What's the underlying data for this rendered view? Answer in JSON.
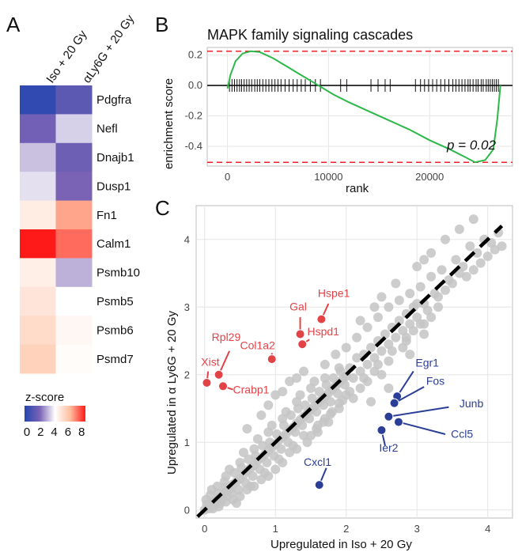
{
  "panels": {
    "a": "A",
    "b": "B",
    "c": "C"
  },
  "heatmap": {
    "columns": [
      "Iso + 20 Gy",
      "αLy6G + 20 Gy"
    ],
    "rows": [
      "Pdgfra",
      "Nefl",
      "Dnajb1",
      "Dusp1",
      "Fn1",
      "Calm1",
      "Psmb10",
      "Psmb5",
      "Psmb6",
      "Psmd7"
    ],
    "values": [
      [
        0.3,
        1.3
      ],
      [
        1.8,
        3.4
      ],
      [
        3.2,
        1.7
      ],
      [
        3.6,
        2.0
      ],
      [
        4.6,
        6.3
      ],
      [
        8.0,
        7.0
      ],
      [
        4.5,
        3.0
      ],
      [
        4.8,
        4.0
      ],
      [
        5.1,
        4.25
      ],
      [
        5.4,
        4.1
      ]
    ],
    "legend_title": "z-score",
    "legend_ticks": [
      "0",
      "2",
      "4",
      "6",
      "8"
    ],
    "legend_colors": [
      "#2346b0",
      "#7a63b5",
      "#ffffff",
      "#ffbe9f",
      "#ff1a1a"
    ]
  },
  "chart_data": [
    {
      "type": "line",
      "title": "MAPK family signaling cascades",
      "xlabel": "rank",
      "ylabel": "enrichment score",
      "xlim": [
        -2000,
        28200
      ],
      "ylim": [
        -0.53,
        0.25
      ],
      "x_ticks": [
        0,
        10000,
        20000
      ],
      "y_ticks": [
        -0.4,
        -0.2,
        0.0,
        0.2
      ],
      "y_tick_labels": [
        "-0.4",
        "-0.2",
        "0.0",
        "0.2"
      ],
      "series": [
        {
          "color": "#2db84a",
          "x": [
            0,
            300,
            800,
            1500,
            2300,
            3200,
            4500,
            6000,
            7500,
            8500,
            9500,
            10500,
            12000,
            14000,
            16000,
            18000,
            20000,
            22000,
            23500,
            24500,
            25500,
            26300,
            26700,
            27000
          ],
          "y": [
            -0.02,
            0.07,
            0.16,
            0.21,
            0.225,
            0.22,
            0.18,
            0.12,
            0.06,
            0.02,
            -0.02,
            -0.06,
            -0.11,
            -0.17,
            -0.23,
            -0.29,
            -0.36,
            -0.42,
            -0.47,
            -0.505,
            -0.49,
            -0.42,
            -0.22,
            0.0
          ]
        }
      ],
      "reference_lines": [
        0.225,
        -0.505
      ],
      "reference_color": "#e8232a",
      "rug_ranks": [
        200,
        450,
        700,
        950,
        1200,
        1400,
        1650,
        1900,
        2150,
        2400,
        2700,
        2950,
        3200,
        3500,
        3800,
        4100,
        4400,
        4700,
        5000,
        5300,
        5700,
        6100,
        6500,
        6900,
        7300,
        7700,
        8200,
        8700,
        9200,
        11200,
        11800,
        14200,
        14900,
        15600,
        16100,
        18600,
        19100,
        19500,
        19900,
        20300,
        20700,
        21100,
        21500,
        21900,
        22300,
        22600,
        22900,
        23200,
        23500,
        23800,
        24000,
        24300,
        24600,
        24800,
        25100,
        25300,
        25600,
        25800,
        26000,
        26200,
        26400,
        26600,
        26800
      ],
      "annotation": "p = 0.02"
    },
    {
      "type": "scatter",
      "xlabel": "Upregulated in Iso + 20 Gy",
      "ylabel": "Upregulated in α Ly6G + 20 Gy",
      "xlim": [
        -0.12,
        4.35
      ],
      "ylim": [
        -0.12,
        4.5
      ],
      "x_ticks": [
        0,
        1,
        2,
        3,
        4
      ],
      "y_ticks": [
        0,
        1,
        2,
        3,
        4
      ],
      "background_points": [
        [
          0.05,
          0.04
        ],
        [
          0.1,
          0.12
        ],
        [
          0.15,
          0.08
        ],
        [
          0.2,
          0.18
        ],
        [
          0.25,
          0.22
        ],
        [
          0.3,
          0.27
        ],
        [
          0.35,
          0.31
        ],
        [
          0.4,
          0.38
        ],
        [
          0.45,
          0.42
        ],
        [
          0.5,
          0.46
        ],
        [
          0.55,
          0.52
        ],
        [
          0.6,
          0.58
        ],
        [
          0.65,
          0.62
        ],
        [
          0.7,
          0.66
        ],
        [
          0.75,
          0.73
        ],
        [
          0.8,
          0.77
        ],
        [
          0.85,
          0.82
        ],
        [
          0.9,
          0.88
        ],
        [
          0.95,
          0.93
        ],
        [
          1.0,
          0.97
        ],
        [
          1.05,
          1.03
        ],
        [
          1.1,
          1.08
        ],
        [
          1.15,
          1.12
        ],
        [
          1.2,
          1.18
        ],
        [
          1.25,
          1.22
        ],
        [
          1.3,
          1.28
        ],
        [
          1.35,
          1.33
        ],
        [
          1.4,
          1.38
        ],
        [
          1.45,
          1.43
        ],
        [
          1.5,
          1.48
        ],
        [
          1.55,
          1.53
        ],
        [
          1.6,
          1.58
        ],
        [
          1.65,
          1.63
        ],
        [
          1.7,
          1.68
        ],
        [
          1.75,
          1.73
        ],
        [
          1.8,
          1.78
        ],
        [
          1.85,
          1.83
        ],
        [
          1.9,
          1.88
        ],
        [
          1.95,
          1.93
        ],
        [
          2.0,
          1.98
        ],
        [
          0.1,
          0.3
        ],
        [
          0.2,
          0.05
        ],
        [
          0.3,
          0.5
        ],
        [
          0.4,
          0.15
        ],
        [
          0.5,
          0.7
        ],
        [
          0.6,
          0.3
        ],
        [
          0.7,
          0.9
        ],
        [
          0.8,
          0.45
        ],
        [
          0.9,
          1.15
        ],
        [
          1.0,
          0.6
        ],
        [
          1.1,
          1.35
        ],
        [
          1.2,
          0.85
        ],
        [
          1.3,
          1.6
        ],
        [
          1.4,
          1.1
        ],
        [
          1.5,
          1.8
        ],
        [
          1.6,
          1.25
        ],
        [
          1.7,
          1.95
        ],
        [
          1.8,
          1.45
        ],
        [
          1.9,
          2.1
        ],
        [
          2.0,
          1.7
        ],
        [
          0.35,
          0.6
        ],
        [
          0.45,
          0.1
        ],
        [
          0.55,
          0.85
        ],
        [
          0.65,
          0.35
        ],
        [
          0.75,
          1.05
        ],
        [
          0.85,
          0.55
        ],
        [
          0.95,
          1.25
        ],
        [
          1.05,
          0.75
        ],
        [
          1.15,
          1.45
        ],
        [
          1.25,
          0.95
        ],
        [
          0.02,
          0.15
        ],
        [
          0.08,
          0.22
        ],
        [
          0.12,
          0.02
        ],
        [
          0.18,
          0.35
        ],
        [
          0.22,
          0.1
        ],
        [
          0.28,
          0.42
        ],
        [
          0.32,
          0.2
        ],
        [
          0.38,
          0.25
        ],
        [
          0.42,
          0.55
        ],
        [
          0.48,
          0.3
        ],
        [
          0.52,
          0.62
        ],
        [
          0.58,
          0.4
        ],
        [
          0.62,
          0.75
        ],
        [
          0.68,
          0.5
        ],
        [
          0.72,
          0.8
        ],
        [
          0.78,
          0.6
        ],
        [
          0.82,
          0.95
        ],
        [
          0.88,
          0.7
        ],
        [
          0.92,
          1.0
        ],
        [
          0.98,
          0.8
        ],
        [
          1.02,
          1.12
        ],
        [
          1.08,
          0.9
        ],
        [
          1.12,
          1.25
        ],
        [
          1.18,
          1.0
        ],
        [
          1.22,
          1.4
        ],
        [
          1.28,
          1.15
        ],
        [
          1.32,
          1.5
        ],
        [
          1.38,
          1.25
        ],
        [
          1.42,
          1.55
        ],
        [
          1.48,
          1.35
        ],
        [
          1.52,
          1.65
        ],
        [
          1.58,
          1.45
        ],
        [
          1.62,
          1.75
        ],
        [
          1.68,
          1.55
        ],
        [
          1.72,
          1.85
        ],
        [
          1.78,
          1.6
        ],
        [
          1.82,
          1.95
        ],
        [
          1.88,
          1.72
        ],
        [
          1.92,
          2.05
        ],
        [
          1.98,
          1.85
        ],
        [
          2.05,
          2.1
        ],
        [
          2.1,
          1.95
        ],
        [
          2.15,
          2.25
        ],
        [
          2.2,
          2.05
        ],
        [
          2.25,
          2.3
        ],
        [
          2.3,
          2.15
        ],
        [
          2.35,
          2.4
        ],
        [
          2.4,
          2.25
        ],
        [
          2.45,
          2.5
        ],
        [
          2.5,
          2.35
        ],
        [
          2.55,
          2.6
        ],
        [
          2.6,
          2.45
        ],
        [
          2.65,
          2.7
        ],
        [
          2.7,
          2.55
        ],
        [
          2.75,
          2.8
        ],
        [
          2.8,
          2.65
        ],
        [
          2.85,
          2.9
        ],
        [
          2.9,
          2.75
        ],
        [
          2.95,
          3.0
        ],
        [
          3.0,
          2.85
        ],
        [
          2.2,
          1.8
        ],
        [
          2.3,
          1.9
        ],
        [
          2.1,
          1.65
        ],
        [
          1.9,
          1.5
        ],
        [
          1.75,
          1.3
        ],
        [
          1.6,
          1.15
        ],
        [
          1.45,
          1.0
        ],
        [
          2.4,
          2.05
        ],
        [
          2.6,
          2.2
        ],
        [
          2.8,
          2.4
        ],
        [
          1.35,
          1.7
        ],
        [
          1.55,
          1.9
        ],
        [
          1.7,
          2.15
        ],
        [
          1.85,
          2.3
        ],
        [
          2.0,
          2.4
        ],
        [
          2.15,
          2.55
        ],
        [
          2.3,
          2.7
        ],
        [
          2.45,
          2.85
        ],
        [
          2.6,
          3.0
        ],
        [
          2.75,
          3.1
        ],
        [
          2.9,
          3.2
        ],
        [
          3.05,
          3.3
        ],
        [
          3.2,
          3.45
        ],
        [
          3.1,
          3.05
        ],
        [
          3.25,
          3.2
        ],
        [
          3.35,
          3.55
        ],
        [
          3.45,
          3.4
        ],
        [
          3.55,
          3.7
        ],
        [
          3.65,
          3.6
        ],
        [
          3.75,
          3.9
        ],
        [
          3.85,
          3.8
        ],
        [
          3.95,
          4.0
        ],
        [
          4.05,
          3.95
        ],
        [
          4.15,
          4.1
        ],
        [
          3.9,
          3.65
        ],
        [
          4.0,
          3.75
        ],
        [
          4.1,
          3.85
        ],
        [
          4.2,
          3.9
        ],
        [
          3.7,
          3.45
        ],
        [
          3.8,
          3.55
        ],
        [
          3.0,
          3.05
        ],
        [
          3.15,
          2.95
        ],
        [
          3.3,
          3.15
        ],
        [
          3.4,
          3.25
        ],
        [
          3.5,
          3.35
        ],
        [
          3.6,
          3.5
        ],
        [
          2.95,
          2.65
        ],
        [
          3.05,
          2.75
        ],
        [
          2.85,
          2.55
        ],
        [
          3.2,
          2.85
        ],
        [
          2.7,
          3.35
        ],
        [
          2.5,
          3.15
        ],
        [
          2.4,
          3.0
        ],
        [
          2.2,
          2.8
        ],
        [
          3.0,
          3.6
        ],
        [
          3.2,
          3.8
        ],
        [
          3.4,
          4.0
        ],
        [
          3.6,
          4.15
        ],
        [
          3.8,
          4.3
        ],
        [
          3.1,
          3.7
        ],
        [
          1.0,
          1.7
        ],
        [
          1.2,
          1.9
        ],
        [
          1.4,
          2.05
        ],
        [
          0.8,
          1.4
        ],
        [
          0.6,
          1.2
        ],
        [
          0.9,
          1.55
        ],
        [
          1.3,
          1.95
        ],
        [
          1.1,
          1.75
        ],
        [
          2.5,
          2.0
        ],
        [
          2.9,
          2.3
        ],
        [
          3.1,
          2.6
        ],
        [
          2.6,
          1.8
        ],
        [
          2.35,
          1.6
        ],
        [
          0.0,
          0.0
        ],
        [
          0.03,
          0.08
        ],
        [
          0.07,
          0.02
        ],
        [
          0.14,
          0.12
        ],
        [
          0.19,
          0.25
        ],
        [
          0.24,
          0.15
        ],
        [
          0.29,
          0.33
        ],
        [
          1.58,
          1.2
        ],
        [
          1.68,
          1.3
        ],
        [
          1.78,
          1.42
        ],
        [
          1.95,
          1.62
        ],
        [
          2.05,
          1.75
        ],
        [
          2.25,
          1.95
        ],
        [
          2.45,
          2.15
        ],
        [
          2.65,
          2.35
        ],
        [
          2.85,
          2.5
        ],
        [
          3.1,
          2.75
        ],
        [
          0.9,
          0.5
        ],
        [
          1.1,
          0.7
        ],
        [
          1.3,
          0.9
        ],
        [
          1.5,
          1.1
        ],
        [
          1.7,
          1.35
        ],
        [
          1.9,
          1.58
        ],
        [
          0.7,
          0.35
        ],
        [
          0.5,
          0.2
        ],
        [
          0.3,
          0.12
        ],
        [
          3.3,
          3.0
        ]
      ],
      "highlight_up_ly6g": {
        "color": "#e24347",
        "points": [
          {
            "label": "Xist",
            "x": 0.03,
            "y": 1.88
          },
          {
            "label": "Rpl29",
            "x": 0.2,
            "y": 2.0
          },
          {
            "label": "Crabp1",
            "x": 0.26,
            "y": 1.83
          },
          {
            "label": "Col1a2",
            "x": 0.95,
            "y": 2.23
          },
          {
            "label": "Gal",
            "x": 1.35,
            "y": 2.6
          },
          {
            "label": "Hspd1",
            "x": 1.38,
            "y": 2.45
          },
          {
            "label": "Hspe1",
            "x": 1.65,
            "y": 2.82
          }
        ]
      },
      "highlight_up_iso": {
        "color": "#2b3e97",
        "points": [
          {
            "label": "Egr1",
            "x": 2.72,
            "y": 1.68
          },
          {
            "label": "Fos",
            "x": 2.68,
            "y": 1.58
          },
          {
            "label": "Junb",
            "x": 2.6,
            "y": 1.38
          },
          {
            "label": "Ccl5",
            "x": 2.74,
            "y": 1.3
          },
          {
            "label": "Ier2",
            "x": 2.5,
            "y": 1.18
          },
          {
            "label": "Cxcl1",
            "x": 1.62,
            "y": 0.37
          }
        ]
      }
    }
  ]
}
